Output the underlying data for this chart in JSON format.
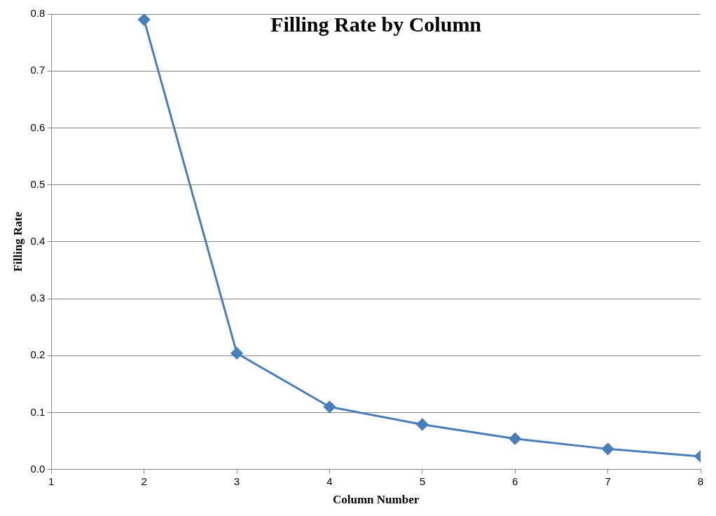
{
  "chart_data": {
    "type": "line",
    "title": "Filling Rate by Column",
    "xlabel": "Column Number",
    "ylabel": "Filling Rate",
    "x": [
      2,
      3,
      4,
      5,
      6,
      7,
      8
    ],
    "series": [
      {
        "color": "#4a7ebb",
        "values": [
          0.79,
          0.204,
          0.11,
          0.079,
          0.054,
          0.036,
          0.023
        ]
      }
    ],
    "xlim": [
      1,
      8
    ],
    "xticks": [
      1,
      2,
      3,
      4,
      5,
      6,
      7,
      8
    ],
    "ylim": [
      0,
      0.8
    ],
    "yticks": [
      {
        "value": 0,
        "label": "0.0"
      },
      0.1,
      0.2,
      0.3,
      0.4,
      0.5,
      0.6,
      0.7,
      0.8
    ],
    "grid": "y",
    "legend": false,
    "marker": "diamond",
    "line_style": "solid"
  }
}
